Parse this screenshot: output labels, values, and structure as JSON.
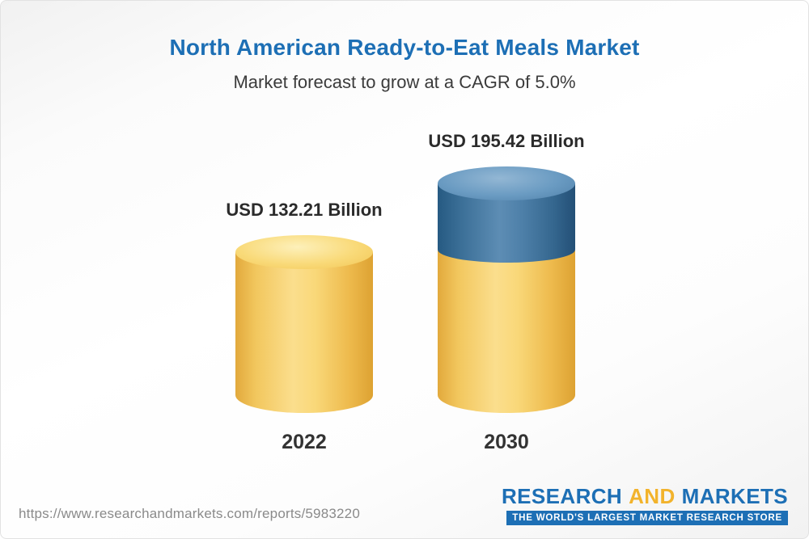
{
  "header": {
    "title": "North American Ready-to-Eat Meals Market",
    "subtitle": "Market forecast to grow at a CAGR of 5.0%"
  },
  "chart_data": {
    "type": "bar",
    "title": "North American Ready-to-Eat Meals Market",
    "subtitle": "Market forecast to grow at a CAGR of 5.0%",
    "categories": [
      "2022",
      "2030"
    ],
    "values": [
      132.21,
      195.42
    ],
    "value_labels": [
      "USD 132.21 Billion",
      "USD 195.42 Billion"
    ],
    "unit": "USD Billion",
    "cagr_percent": 5.0,
    "legend_position": "none",
    "grid": false,
    "colors": {
      "bar_base": "#F6C757",
      "bar_growth_segment": "#336F9E",
      "title_text": "#1D6FB5",
      "label_text": "#2B2B2B"
    }
  },
  "footer": {
    "url": "https://www.researchandmarkets.com/reports/5983220",
    "logo": {
      "research": "RESEARCH",
      "and": "AND",
      "markets": "MARKETS",
      "tagline": "THE WORLD'S LARGEST MARKET RESEARCH STORE"
    }
  }
}
